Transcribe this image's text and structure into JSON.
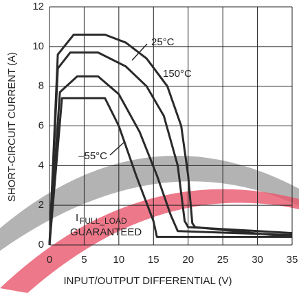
{
  "chart_data": {
    "type": "line",
    "x_label": "INPUT/OUTPUT DIFFERENTIAL (V)",
    "y_label": "SHORT-CIRCUIT CURRENT (A)",
    "xlim": [
      0,
      35
    ],
    "ylim": [
      0,
      12
    ],
    "xticks": [
      0,
      5,
      10,
      15,
      20,
      25,
      30,
      35
    ],
    "yticks": [
      0,
      2,
      4,
      6,
      8,
      10,
      12
    ],
    "grid": true,
    "series": [
      {
        "color": "#2a2a2a",
        "x": [
          0,
          1.2,
          3.5,
          8,
          11,
          14,
          17,
          19,
          20,
          20.6,
          21,
          35
        ],
        "values": [
          0,
          9.6,
          10.6,
          10.6,
          10.2,
          9.4,
          8,
          6,
          3.5,
          1.1,
          0.9,
          0.4
        ]
      },
      {
        "color": "#2a2a2a",
        "x": [
          0,
          1.2,
          3,
          7,
          11,
          14,
          16.5,
          18.5,
          19.5,
          20,
          35
        ],
        "values": [
          0,
          8.9,
          9.7,
          9.7,
          9,
          8,
          6.5,
          4,
          1.2,
          0.9,
          0.6
        ]
      },
      {
        "color": "#2a2a2a",
        "x": [
          0,
          1.5,
          4,
          7,
          10,
          13,
          15.5,
          17.5,
          18.5,
          35
        ],
        "values": [
          0,
          7.7,
          8.5,
          8.5,
          7.6,
          5.7,
          3.5,
          1.5,
          0.7,
          0.5
        ]
      },
      {
        "color": "#2a2a2a",
        "x": [
          0,
          1.8,
          8,
          10,
          12.5,
          15,
          15.5,
          35
        ],
        "values": [
          0,
          7.4,
          7.4,
          6,
          3.5,
          1.2,
          0.4,
          0.4
        ]
      }
    ],
    "annotations": [
      "25°C",
      "150°C",
      "–55°C",
      "GUARANTEED"
    ],
    "subscript_label": {
      "text": "I",
      "subscript": "FULL_LOAD"
    }
  }
}
